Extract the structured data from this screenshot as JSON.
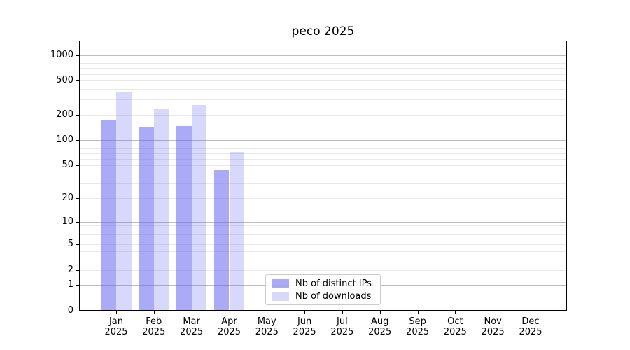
{
  "title": "peco 2025",
  "chart_data": {
    "type": "bar",
    "title": "peco 2025",
    "y_scale": "log1p",
    "xlabel": "",
    "ylabel": "",
    "categories": [
      "Jan",
      "Feb",
      "Mar",
      "Apr",
      "May",
      "Jun",
      "Jul",
      "Aug",
      "Sep",
      "Oct",
      "Nov",
      "Dec"
    ],
    "x_tick_year": "2025",
    "series": [
      {
        "name": "Nb of distinct IPs",
        "color": "rgba(100,100,240,0.55)",
        "values": [
          172,
          144,
          146,
          44,
          null,
          null,
          null,
          null,
          null,
          null,
          null,
          null
        ]
      },
      {
        "name": "Nb of downloads",
        "color": "rgba(100,100,240,0.25)",
        "values": [
          366,
          236,
          258,
          72,
          null,
          null,
          null,
          null,
          null,
          null,
          null,
          null
        ]
      }
    ],
    "y_ticks": [
      0,
      1,
      2,
      5,
      10,
      20,
      50,
      100,
      200,
      500,
      1000
    ],
    "y_major_gridlines": [
      1,
      10,
      100,
      1000
    ],
    "ylim": [
      0,
      1475
    ],
    "grid": "both",
    "legend_position": "lower center"
  },
  "colors": {
    "grid_major": "#bdbdbd",
    "grid_minor": "#e9e9e9",
    "axis": "#000000",
    "legend_border": "#cccccc",
    "background": "#ffffff"
  }
}
